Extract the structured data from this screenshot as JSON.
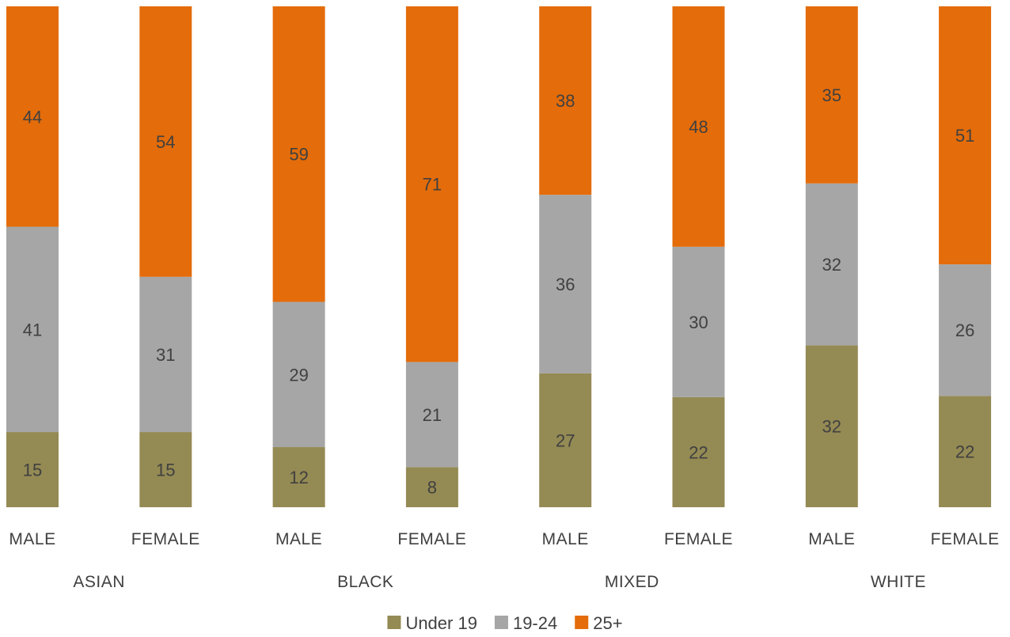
{
  "chart_data": {
    "type": "bar",
    "stacked": true,
    "percent_stacked": true,
    "categories": [
      "MALE",
      "FEMALE",
      "MALE",
      "FEMALE",
      "MALE",
      "FEMALE",
      "MALE",
      "FEMALE"
    ],
    "groups": [
      {
        "label": "ASIAN",
        "categories": [
          0,
          1
        ]
      },
      {
        "label": "BLACK",
        "categories": [
          2,
          3
        ]
      },
      {
        "label": "MIXED",
        "categories": [
          4,
          5
        ]
      },
      {
        "label": "WHITE",
        "categories": [
          6,
          7
        ]
      }
    ],
    "series": [
      {
        "name": "Under 19",
        "color": "#948A54",
        "values": [
          15,
          15,
          12,
          8,
          27,
          22,
          32,
          22
        ]
      },
      {
        "name": "19-24",
        "color": "#A6A6A6",
        "values": [
          41,
          31,
          29,
          21,
          36,
          30,
          32,
          26
        ]
      },
      {
        "name": "25+",
        "color": "#E46C0A",
        "values": [
          44,
          54,
          59,
          71,
          38,
          48,
          35,
          51
        ]
      }
    ],
    "data_labels": true,
    "legend": "bottom",
    "grid": false,
    "title": "",
    "xlabel": "",
    "ylabel": ""
  }
}
